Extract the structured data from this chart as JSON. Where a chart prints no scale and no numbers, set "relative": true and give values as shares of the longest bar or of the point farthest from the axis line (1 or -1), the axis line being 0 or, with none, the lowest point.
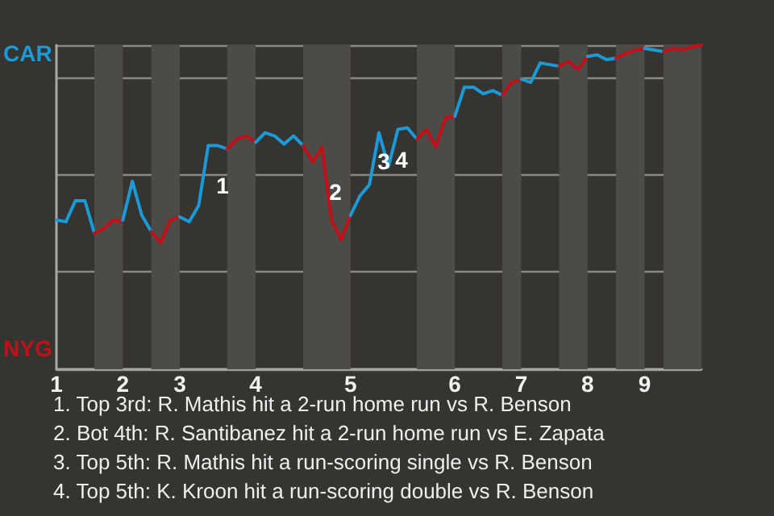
{
  "chart_data": {
    "type": "line",
    "relative": true,
    "categories": [
      "1",
      null,
      null,
      null,
      null,
      null,
      null,
      "2",
      null,
      null,
      null,
      null,
      null,
      "3",
      null,
      null,
      null,
      null,
      null,
      null,
      null,
      "4",
      null,
      null,
      null,
      null,
      null,
      null,
      null,
      null,
      null,
      "5",
      null,
      null,
      null,
      null,
      null,
      null,
      null,
      null,
      null,
      null,
      "6",
      null,
      null,
      null,
      null,
      null,
      null,
      "7",
      null,
      null,
      null,
      null,
      null,
      null,
      "8",
      null,
      null,
      null,
      null,
      null,
      "9",
      null,
      null,
      null,
      null,
      null,
      null
    ],
    "grid": "y",
    "marker": "none",
    "line_style": "solid",
    "series": [
      {
        "color": "#1a9ad6",
        "values": [
          0.46,
          0.455,
          0.52,
          0.52,
          0.42,
          null,
          null,
          null,
          null,
          null,
          null,
          null,
          null,
          null,
          null,
          null,
          null,
          null,
          null,
          null,
          null,
          null,
          null,
          null,
          null,
          null,
          null,
          null,
          null,
          null,
          null,
          null,
          null,
          null,
          null,
          null,
          null,
          null,
          null,
          null,
          null,
          null,
          null,
          null,
          null,
          null,
          null,
          null,
          null,
          null,
          null,
          null,
          null,
          null,
          null,
          null,
          null,
          null,
          null,
          null,
          null,
          null,
          null,
          null,
          null,
          null,
          null,
          null,
          null
        ]
      },
      {
        "color": "#c0101a",
        "values": [
          null,
          null,
          null,
          null,
          0.42,
          0.435,
          0.46,
          0.46,
          null,
          null,
          null,
          null,
          null,
          null,
          null,
          null,
          null,
          null,
          null,
          null,
          null,
          null,
          null,
          null,
          null,
          null,
          null,
          null,
          null,
          null,
          null,
          null,
          null,
          null,
          null,
          null,
          null,
          null,
          null,
          null,
          null,
          null,
          null,
          null,
          null,
          null,
          null,
          null,
          null,
          null,
          null,
          null,
          null,
          null,
          null,
          null,
          null,
          null,
          null,
          null,
          null,
          null,
          null,
          null,
          null,
          null,
          null,
          null,
          null
        ]
      },
      {
        "color": "#1a9ad6",
        "values": [
          null,
          null,
          null,
          null,
          null,
          null,
          null,
          0.46,
          0.58,
          0.475,
          0.425,
          null,
          null,
          null,
          null,
          null,
          null,
          null,
          null,
          null,
          null,
          null,
          null,
          null,
          null,
          null,
          null,
          null,
          null,
          null,
          null,
          null,
          null,
          null,
          null,
          null,
          null,
          null,
          null,
          null,
          null,
          null,
          null,
          null,
          null,
          null,
          null,
          null,
          null,
          null,
          null,
          null,
          null,
          null,
          null,
          null,
          null,
          null,
          null,
          null,
          null,
          null,
          null,
          null,
          null,
          null,
          null,
          null,
          null
        ]
      },
      {
        "color": "#c0101a",
        "values": [
          null,
          null,
          null,
          null,
          null,
          null,
          null,
          null,
          null,
          null,
          0.425,
          0.39,
          0.46,
          0.47,
          null,
          null,
          null,
          null,
          null,
          null,
          null,
          null,
          null,
          null,
          null,
          null,
          null,
          null,
          null,
          null,
          null,
          null,
          null,
          null,
          null,
          null,
          null,
          null,
          null,
          null,
          null,
          null,
          null,
          null,
          null,
          null,
          null,
          null,
          null,
          null,
          null,
          null,
          null,
          null,
          null,
          null,
          null,
          null,
          null,
          null,
          null,
          null,
          null,
          null,
          null,
          null,
          null,
          null,
          null
        ]
      },
      {
        "color": "#1a9ad6",
        "values": [
          null,
          null,
          null,
          null,
          null,
          null,
          null,
          null,
          null,
          null,
          null,
          null,
          null,
          0.47,
          0.455,
          0.505,
          0.69,
          0.69,
          0.68,
          null,
          null,
          null,
          null,
          null,
          null,
          null,
          null,
          null,
          null,
          null,
          null,
          null,
          null,
          null,
          null,
          null,
          null,
          null,
          null,
          null,
          null,
          null,
          null,
          null,
          null,
          null,
          null,
          null,
          null,
          null,
          null,
          null,
          null,
          null,
          null,
          null,
          null,
          null,
          null,
          null,
          null,
          null,
          null,
          null,
          null,
          null,
          null,
          null,
          null
        ]
      },
      {
        "color": "#c0101a",
        "values": [
          null,
          null,
          null,
          null,
          null,
          null,
          null,
          null,
          null,
          null,
          null,
          null,
          null,
          null,
          null,
          null,
          null,
          null,
          0.68,
          0.71,
          0.72,
          0.7,
          null,
          null,
          null,
          null,
          null,
          null,
          null,
          null,
          null,
          null,
          null,
          null,
          null,
          null,
          null,
          null,
          null,
          null,
          null,
          null,
          null,
          null,
          null,
          null,
          null,
          null,
          null,
          null,
          null,
          null,
          null,
          null,
          null,
          null,
          null,
          null,
          null,
          null,
          null,
          null,
          null,
          null,
          null,
          null,
          null,
          null,
          null
        ]
      },
      {
        "color": "#1a9ad6",
        "values": [
          null,
          null,
          null,
          null,
          null,
          null,
          null,
          null,
          null,
          null,
          null,
          null,
          null,
          null,
          null,
          null,
          null,
          null,
          null,
          null,
          null,
          0.7,
          0.73,
          0.72,
          0.695,
          0.72,
          0.69,
          null,
          null,
          null,
          null,
          null,
          null,
          null,
          null,
          null,
          null,
          null,
          null,
          null,
          null,
          null,
          null,
          null,
          null,
          null,
          null,
          null,
          null,
          null,
          null,
          null,
          null,
          null,
          null,
          null,
          null,
          null,
          null,
          null,
          null,
          null,
          null,
          null,
          null,
          null,
          null,
          null,
          null
        ]
      },
      {
        "color": "#c0101a",
        "values": [
          null,
          null,
          null,
          null,
          null,
          null,
          null,
          null,
          null,
          null,
          null,
          null,
          null,
          null,
          null,
          null,
          null,
          null,
          null,
          null,
          null,
          null,
          null,
          null,
          null,
          null,
          0.69,
          0.64,
          0.685,
          0.46,
          0.4,
          0.475,
          null,
          null,
          null,
          null,
          null,
          null,
          null,
          null,
          null,
          null,
          null,
          null,
          null,
          null,
          null,
          null,
          null,
          null,
          null,
          null,
          null,
          null,
          null,
          null,
          null,
          null,
          null,
          null,
          null,
          null,
          null,
          null,
          null,
          null,
          null,
          null,
          null
        ]
      },
      {
        "color": "#1a9ad6",
        "values": [
          null,
          null,
          null,
          null,
          null,
          null,
          null,
          null,
          null,
          null,
          null,
          null,
          null,
          null,
          null,
          null,
          null,
          null,
          null,
          null,
          null,
          null,
          null,
          null,
          null,
          null,
          null,
          null,
          null,
          null,
          null,
          0.475,
          0.535,
          0.57,
          0.73,
          0.625,
          0.74,
          0.745,
          0.71,
          null,
          null,
          null,
          null,
          null,
          null,
          null,
          null,
          null,
          null,
          null,
          null,
          null,
          null,
          null,
          null,
          null,
          null,
          null,
          null,
          null,
          null,
          null,
          null,
          null,
          null,
          null,
          null,
          null,
          null
        ]
      },
      {
        "color": "#c0101a",
        "values": [
          null,
          null,
          null,
          null,
          null,
          null,
          null,
          null,
          null,
          null,
          null,
          null,
          null,
          null,
          null,
          null,
          null,
          null,
          null,
          null,
          null,
          null,
          null,
          null,
          null,
          null,
          null,
          null,
          null,
          null,
          null,
          null,
          null,
          null,
          null,
          null,
          null,
          null,
          0.71,
          0.74,
          0.685,
          0.775,
          0.78,
          null,
          null,
          null,
          null,
          null,
          null,
          null,
          null,
          null,
          null,
          null,
          null,
          null,
          null,
          null,
          null,
          null,
          null,
          null,
          null,
          null,
          null,
          null,
          null,
          null,
          null
        ]
      },
      {
        "color": "#1a9ad6",
        "values": [
          null,
          null,
          null,
          null,
          null,
          null,
          null,
          null,
          null,
          null,
          null,
          null,
          null,
          null,
          null,
          null,
          null,
          null,
          null,
          null,
          null,
          null,
          null,
          null,
          null,
          null,
          null,
          null,
          null,
          null,
          null,
          null,
          null,
          null,
          null,
          null,
          null,
          null,
          null,
          null,
          null,
          null,
          0.78,
          0.87,
          0.87,
          0.85,
          0.86,
          0.845,
          null,
          null,
          null,
          null,
          null,
          null,
          null,
          null,
          null,
          null,
          null,
          null,
          null,
          null,
          null,
          null,
          null,
          null,
          null,
          null,
          null
        ]
      },
      {
        "color": "#c0101a",
        "values": [
          null,
          null,
          null,
          null,
          null,
          null,
          null,
          null,
          null,
          null,
          null,
          null,
          null,
          null,
          null,
          null,
          null,
          null,
          null,
          null,
          null,
          null,
          null,
          null,
          null,
          null,
          null,
          null,
          null,
          null,
          null,
          null,
          null,
          null,
          null,
          null,
          null,
          null,
          null,
          null,
          null,
          null,
          null,
          null,
          null,
          null,
          null,
          0.845,
          0.885,
          0.895,
          null,
          null,
          null,
          null,
          null,
          null,
          null,
          null,
          null,
          null,
          null,
          null,
          null,
          null,
          null,
          null,
          null,
          null,
          null
        ]
      },
      {
        "color": "#1a9ad6",
        "values": [
          null,
          null,
          null,
          null,
          null,
          null,
          null,
          null,
          null,
          null,
          null,
          null,
          null,
          null,
          null,
          null,
          null,
          null,
          null,
          null,
          null,
          null,
          null,
          null,
          null,
          null,
          null,
          null,
          null,
          null,
          null,
          null,
          null,
          null,
          null,
          null,
          null,
          null,
          null,
          null,
          null,
          null,
          null,
          null,
          null,
          null,
          null,
          null,
          null,
          0.895,
          0.885,
          0.945,
          0.94,
          0.935,
          null,
          null,
          null,
          null,
          null,
          null,
          null,
          null,
          null,
          null,
          null,
          null,
          null,
          null,
          null
        ]
      },
      {
        "color": "#c0101a",
        "values": [
          null,
          null,
          null,
          null,
          null,
          null,
          null,
          null,
          null,
          null,
          null,
          null,
          null,
          null,
          null,
          null,
          null,
          null,
          null,
          null,
          null,
          null,
          null,
          null,
          null,
          null,
          null,
          null,
          null,
          null,
          null,
          null,
          null,
          null,
          null,
          null,
          null,
          null,
          null,
          null,
          null,
          null,
          null,
          null,
          null,
          null,
          null,
          null,
          null,
          null,
          null,
          null,
          null,
          0.935,
          0.95,
          0.925,
          0.965,
          null,
          null,
          null,
          null,
          null,
          null,
          null,
          null,
          null,
          null,
          null,
          null
        ]
      },
      {
        "color": "#1a9ad6",
        "values": [
          null,
          null,
          null,
          null,
          null,
          null,
          null,
          null,
          null,
          null,
          null,
          null,
          null,
          null,
          null,
          null,
          null,
          null,
          null,
          null,
          null,
          null,
          null,
          null,
          null,
          null,
          null,
          null,
          null,
          null,
          null,
          null,
          null,
          null,
          null,
          null,
          null,
          null,
          null,
          null,
          null,
          null,
          null,
          null,
          null,
          null,
          null,
          null,
          null,
          null,
          null,
          null,
          null,
          null,
          null,
          null,
          0.965,
          0.97,
          0.955,
          0.96,
          null,
          null,
          null,
          null,
          null,
          null,
          null,
          null,
          null
        ]
      },
      {
        "color": "#c0101a",
        "values": [
          null,
          null,
          null,
          null,
          null,
          null,
          null,
          null,
          null,
          null,
          null,
          null,
          null,
          null,
          null,
          null,
          null,
          null,
          null,
          null,
          null,
          null,
          null,
          null,
          null,
          null,
          null,
          null,
          null,
          null,
          null,
          null,
          null,
          null,
          null,
          null,
          null,
          null,
          null,
          null,
          null,
          null,
          null,
          null,
          null,
          null,
          null,
          null,
          null,
          null,
          null,
          null,
          null,
          null,
          null,
          null,
          null,
          null,
          null,
          0.96,
          0.975,
          0.985,
          0.99,
          null,
          null,
          null,
          null,
          null,
          null
        ]
      },
      {
        "color": "#1a9ad6",
        "values": [
          null,
          null,
          null,
          null,
          null,
          null,
          null,
          null,
          null,
          null,
          null,
          null,
          null,
          null,
          null,
          null,
          null,
          null,
          null,
          null,
          null,
          null,
          null,
          null,
          null,
          null,
          null,
          null,
          null,
          null,
          null,
          null,
          null,
          null,
          null,
          null,
          null,
          null,
          null,
          null,
          null,
          null,
          null,
          null,
          null,
          null,
          null,
          null,
          null,
          null,
          null,
          null,
          null,
          null,
          null,
          null,
          null,
          null,
          null,
          null,
          null,
          null,
          0.99,
          0.985,
          0.98,
          null,
          null,
          null,
          null
        ]
      },
      {
        "color": "#c0101a",
        "values": [
          null,
          null,
          null,
          null,
          null,
          null,
          null,
          null,
          null,
          null,
          null,
          null,
          null,
          null,
          null,
          null,
          null,
          null,
          null,
          null,
          null,
          null,
          null,
          null,
          null,
          null,
          null,
          null,
          null,
          null,
          null,
          null,
          null,
          null,
          null,
          null,
          null,
          null,
          null,
          null,
          null,
          null,
          null,
          null,
          null,
          null,
          null,
          null,
          null,
          null,
          null,
          null,
          null,
          null,
          null,
          null,
          null,
          null,
          null,
          null,
          null,
          null,
          null,
          null,
          0.98,
          0.99,
          0.985,
          0.995,
          1
        ]
      }
    ],
    "annotations": [
      "1",
      "2",
      "3",
      "4",
      "1. Top 3rd: R. Mathis hit a 2-run home run vs R. Benson",
      "2. Bot 4th: R. Santibanez hit a 2-run home run vs E. Zapata",
      "3. Top 5th: R. Mathis hit a run-scoring single vs R. Benson",
      "4. Top 5th: K. Kroon hit a run-scoring double vs R. Benson",
      "CAR",
      "NYG"
    ]
  }
}
